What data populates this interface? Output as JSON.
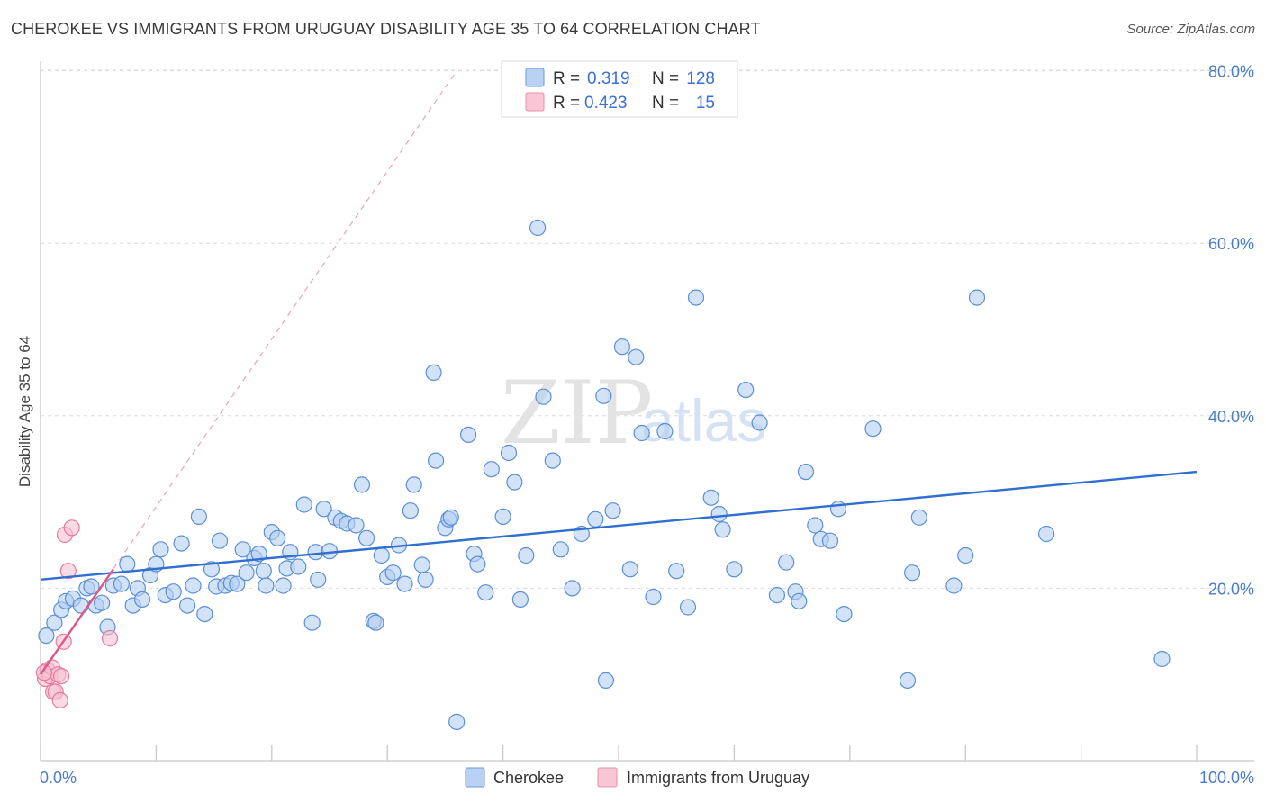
{
  "header": {
    "title": "CHEROKEE VS IMMIGRANTS FROM URUGUAY DISABILITY AGE 35 TO 64 CORRELATION CHART",
    "source": "Source: ZipAtlas.com"
  },
  "watermark": {
    "zip": "ZIP",
    "atlas": "atlas"
  },
  "legend": {
    "rows": [
      {
        "r_label": "R =",
        "r_value": "0.319",
        "n_label": "N =",
        "n_value": "128",
        "color": "#aac8f2"
      },
      {
        "r_label": "R =",
        "r_value": "0.423",
        "n_label": "N =",
        "n_value": "15",
        "color": "#f7b9cb"
      }
    ]
  },
  "bottom_legend": [
    {
      "label": "Cherokee",
      "color": "#aac8f2"
    },
    {
      "label": "Immigrants from Uruguay",
      "color": "#f7b9cb"
    }
  ],
  "chart_data": {
    "type": "scatter",
    "title": "CHEROKEE VS IMMIGRANTS FROM URUGUAY DISABILITY AGE 35 TO 64 CORRELATION CHART",
    "ylabel": "Disability Age 35 to 64",
    "xlabel": "",
    "xlim": [
      0,
      100
    ],
    "ylim": [
      0,
      85
    ],
    "x_tick_labels": [
      "0.0%",
      "100.0%"
    ],
    "y_ticks": [
      20,
      40,
      60,
      80
    ],
    "y_tick_labels": [
      "20.0%",
      "40.0%",
      "60.0%",
      "80.0%"
    ],
    "grid": true,
    "legend_position": "top-center",
    "series": [
      {
        "name": "Cherokee",
        "color": "#5b8fd6",
        "fill": "#b4cff2",
        "trend": {
          "x0": 0,
          "y0": 21,
          "x1": 100,
          "y1": 33.5,
          "color": "#2f6fd0"
        },
        "points": [
          [
            0.5,
            14.5
          ],
          [
            1.2,
            16
          ],
          [
            1.8,
            17.5
          ],
          [
            2.2,
            18.5
          ],
          [
            2.8,
            18.8
          ],
          [
            3.5,
            18
          ],
          [
            4,
            20
          ],
          [
            4.4,
            20.2
          ],
          [
            4.8,
            18
          ],
          [
            5.3,
            18.3
          ],
          [
            5.8,
            15.5
          ],
          [
            6.3,
            20.3
          ],
          [
            7,
            20.5
          ],
          [
            7.5,
            22.8
          ],
          [
            8,
            18
          ],
          [
            8.4,
            20
          ],
          [
            8.8,
            18.7
          ],
          [
            9.5,
            21.5
          ],
          [
            10,
            22.8
          ],
          [
            10.4,
            24.5
          ],
          [
            10.8,
            19.2
          ],
          [
            11.5,
            19.6
          ],
          [
            12.2,
            25.2
          ],
          [
            12.7,
            18
          ],
          [
            13.2,
            20.3
          ],
          [
            13.7,
            28.3
          ],
          [
            14.2,
            17
          ],
          [
            14.8,
            22.2
          ],
          [
            15.2,
            20.2
          ],
          [
            15.5,
            25.5
          ],
          [
            16,
            20.3
          ],
          [
            16.5,
            20.6
          ],
          [
            17,
            20.5
          ],
          [
            17.5,
            24.5
          ],
          [
            17.8,
            21.8
          ],
          [
            18.5,
            23.5
          ],
          [
            18.9,
            24
          ],
          [
            19.3,
            22
          ],
          [
            19.5,
            20.3
          ],
          [
            20,
            26.5
          ],
          [
            20.5,
            25.8
          ],
          [
            21,
            20.3
          ],
          [
            21.3,
            22.3
          ],
          [
            21.6,
            24.2
          ],
          [
            22.3,
            22.5
          ],
          [
            22.8,
            29.7
          ],
          [
            23.5,
            16
          ],
          [
            23.8,
            24.2
          ],
          [
            24,
            21
          ],
          [
            24.5,
            29.2
          ],
          [
            25,
            24.3
          ],
          [
            25.5,
            28.2
          ],
          [
            26,
            27.8
          ],
          [
            26.5,
            27.5
          ],
          [
            27.3,
            27.3
          ],
          [
            27.8,
            32
          ],
          [
            28.2,
            25.8
          ],
          [
            28.8,
            16.2
          ],
          [
            29,
            16
          ],
          [
            29.5,
            23.8
          ],
          [
            30,
            21.3
          ],
          [
            30.5,
            21.8
          ],
          [
            31,
            25
          ],
          [
            31.5,
            20.5
          ],
          [
            32,
            29
          ],
          [
            32.3,
            32
          ],
          [
            33,
            22.7
          ],
          [
            33.3,
            21
          ],
          [
            34,
            45
          ],
          [
            34.2,
            34.8
          ],
          [
            35,
            27
          ],
          [
            35.3,
            28
          ],
          [
            35.5,
            28.2
          ],
          [
            36,
            4.5
          ],
          [
            37,
            37.8
          ],
          [
            37.5,
            24
          ],
          [
            37.8,
            22.8
          ],
          [
            38.5,
            19.5
          ],
          [
            39,
            33.8
          ],
          [
            40,
            28.3
          ],
          [
            40.5,
            35.7
          ],
          [
            41,
            32.3
          ],
          [
            41.5,
            18.7
          ],
          [
            42,
            23.8
          ],
          [
            43,
            61.8
          ],
          [
            43.5,
            42.2
          ],
          [
            44.3,
            34.8
          ],
          [
            45,
            24.5
          ],
          [
            46,
            20
          ],
          [
            46.8,
            26.3
          ],
          [
            48,
            28
          ],
          [
            48.7,
            42.3
          ],
          [
            48.9,
            9.3
          ],
          [
            49.5,
            29
          ],
          [
            50.3,
            48
          ],
          [
            51,
            22.2
          ],
          [
            51.5,
            46.8
          ],
          [
            52,
            38
          ],
          [
            53,
            19
          ],
          [
            54,
            38.2
          ],
          [
            55,
            22
          ],
          [
            56,
            17.8
          ],
          [
            56.7,
            53.7
          ],
          [
            58,
            30.5
          ],
          [
            58.7,
            28.6
          ],
          [
            59,
            26.8
          ],
          [
            60,
            22.2
          ],
          [
            61,
            43
          ],
          [
            62.2,
            39.2
          ],
          [
            63.7,
            19.2
          ],
          [
            64.5,
            23
          ],
          [
            65.3,
            19.6
          ],
          [
            65.6,
            18.5
          ],
          [
            66.2,
            33.5
          ],
          [
            67,
            27.3
          ],
          [
            67.5,
            25.7
          ],
          [
            68.3,
            25.5
          ],
          [
            69,
            29.2
          ],
          [
            69.5,
            17
          ],
          [
            72,
            38.5
          ],
          [
            75,
            9.3
          ],
          [
            75.4,
            21.8
          ],
          [
            76,
            28.2
          ],
          [
            79,
            20.3
          ],
          [
            80,
            23.8
          ],
          [
            81,
            53.7
          ],
          [
            87,
            26.3
          ],
          [
            97,
            11.8
          ]
        ]
      },
      {
        "name": "Immigrants from Uruguay",
        "color": "#e87a9d",
        "fill": "#f7c1d1",
        "trend": {
          "x0": 0,
          "y0": 10,
          "x1": 6.3,
          "y1": 22.2,
          "color": "#e05585"
        },
        "trend_extended": {
          "x0": 0,
          "y0": 10,
          "x1": 36,
          "y1": 80,
          "color": "#eaa3b8"
        },
        "points": [
          [
            0.4,
            9.5
          ],
          [
            0.6,
            10.5
          ],
          [
            0.8,
            9.8
          ],
          [
            1,
            10.8
          ],
          [
            1.1,
            8
          ],
          [
            1.3,
            8
          ],
          [
            1.5,
            10
          ],
          [
            1.7,
            7
          ],
          [
            1.8,
            9.8
          ],
          [
            2,
            13.8
          ],
          [
            2.1,
            26.2
          ],
          [
            2.4,
            22
          ],
          [
            2.7,
            27
          ],
          [
            6,
            14.2
          ],
          [
            0.3,
            10.2
          ]
        ]
      }
    ]
  }
}
